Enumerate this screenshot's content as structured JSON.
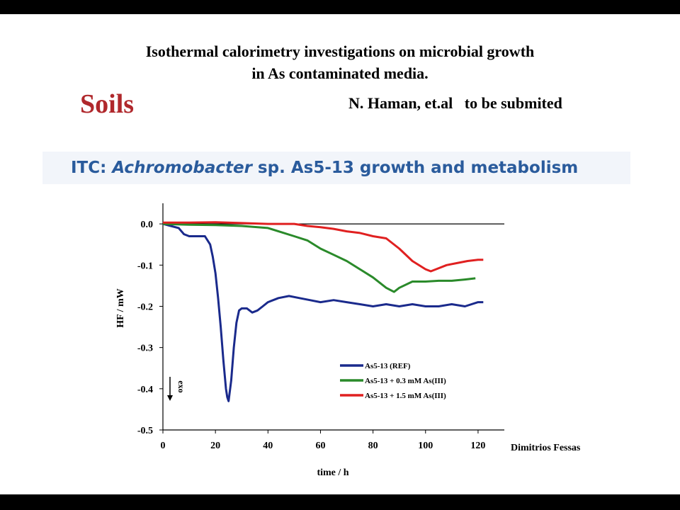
{
  "slide": {
    "title_line1": "Isothermal calorimetry investigations on microbial growth",
    "title_line2": "in As contaminated media.",
    "section": "Soils",
    "authors": "N. Haman, et.al   to be submited",
    "itc_prefix": "ITC: ",
    "itc_italic": "Achromobacter",
    "itc_suffix": " sp. As5-13 growth and metabolism",
    "signature": "Dimitrios Fessas"
  },
  "chart_data": {
    "type": "line",
    "title": "",
    "xlabel": "time / h",
    "ylabel": "HF / mW",
    "xlim": [
      0,
      130
    ],
    "ylim": [
      -0.5,
      0.05
    ],
    "xticks": [
      0,
      20,
      40,
      60,
      80,
      100,
      120
    ],
    "xtick_labels": [
      "0",
      "20",
      "40",
      "60",
      "80",
      "100",
      "120"
    ],
    "yticks": [
      0,
      -0.1,
      -0.2,
      -0.3,
      -0.4,
      -0.5
    ],
    "ytick_labels": [
      "0.0",
      "-0.1",
      "-0.2",
      "-0.3",
      "-0.4",
      "-0.5"
    ],
    "baseline_y": 0,
    "exo_label": "exo",
    "legend_position": "lower-right",
    "colors": {
      "ref": "#1a2a8c",
      "low": "#2a8a2a",
      "high": "#e02020",
      "axis": "#000000"
    },
    "series": [
      {
        "name": "As5-13 (REF)",
        "color": "#1a2a8c",
        "x": [
          0,
          3,
          6,
          8,
          10,
          12,
          15,
          16,
          18,
          19,
          20,
          21,
          22,
          23,
          24,
          24.5,
          25,
          26,
          27,
          28,
          29,
          30,
          32,
          34,
          36,
          38,
          40,
          44,
          48,
          52,
          56,
          60,
          65,
          70,
          75,
          80,
          85,
          90,
          95,
          100,
          105,
          110,
          115,
          120,
          122
        ],
        "y": [
          0,
          -0.005,
          -0.01,
          -0.025,
          -0.03,
          -0.03,
          -0.03,
          -0.03,
          -0.05,
          -0.08,
          -0.12,
          -0.18,
          -0.25,
          -0.33,
          -0.4,
          -0.42,
          -0.43,
          -0.38,
          -0.3,
          -0.24,
          -0.21,
          -0.205,
          -0.205,
          -0.215,
          -0.21,
          -0.2,
          -0.19,
          -0.18,
          -0.175,
          -0.18,
          -0.185,
          -0.19,
          -0.185,
          -0.19,
          -0.195,
          -0.2,
          -0.195,
          -0.2,
          -0.195,
          -0.2,
          -0.2,
          -0.195,
          -0.2,
          -0.19,
          -0.19
        ]
      },
      {
        "name": "As5-13 + 0.3 mM As(III)",
        "color": "#2a8a2a",
        "x": [
          0,
          10,
          20,
          30,
          40,
          45,
          50,
          55,
          60,
          65,
          70,
          75,
          80,
          85,
          88,
          90,
          95,
          100,
          105,
          110,
          115,
          119
        ],
        "y": [
          0,
          -0.002,
          -0.003,
          -0.005,
          -0.01,
          -0.02,
          -0.03,
          -0.04,
          -0.06,
          -0.075,
          -0.09,
          -0.11,
          -0.13,
          -0.155,
          -0.165,
          -0.155,
          -0.14,
          -0.14,
          -0.138,
          -0.138,
          -0.135,
          -0.132
        ]
      },
      {
        "name": "As5-13 + 1.5 mM As(III)",
        "color": "#e02020",
        "x": [
          0,
          10,
          20,
          30,
          40,
          50,
          55,
          60,
          65,
          70,
          75,
          80,
          85,
          90,
          95,
          100,
          102,
          104,
          108,
          112,
          116,
          120,
          122
        ],
        "y": [
          0.003,
          0.003,
          0.004,
          0.002,
          0,
          0,
          -0.005,
          -0.008,
          -0.012,
          -0.018,
          -0.022,
          -0.03,
          -0.035,
          -0.06,
          -0.09,
          -0.11,
          -0.115,
          -0.11,
          -0.1,
          -0.095,
          -0.09,
          -0.087,
          -0.087
        ]
      }
    ]
  }
}
